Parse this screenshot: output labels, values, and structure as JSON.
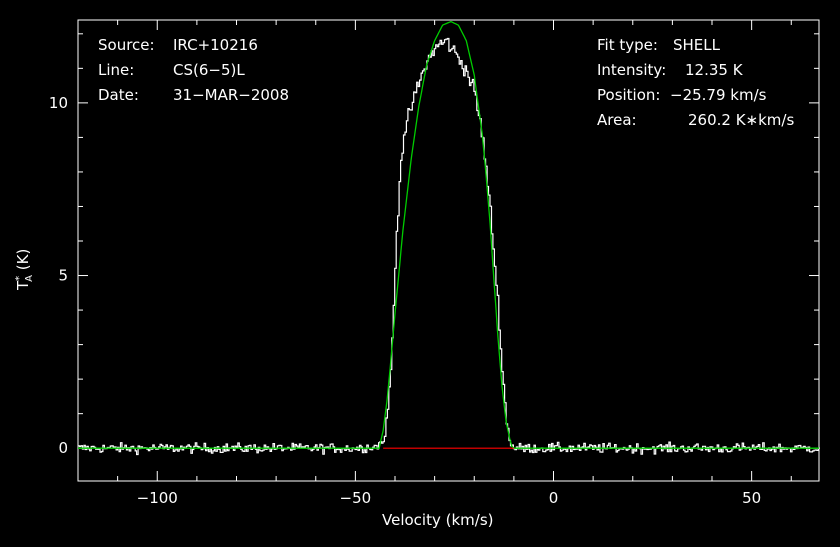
{
  "header_left": {
    "source_label": "Source:",
    "source_value": "IRC+10216",
    "line_label": "Line:",
    "line_value": "CS(6−5)L",
    "date_label": "Date:",
    "date_value": "31−MAR−2008"
  },
  "header_right": {
    "fit_label": "Fit type:",
    "fit_value": "SHELL",
    "intensity_label": "Intensity:",
    "intensity_value": "12.35 K",
    "position_label": "Position:",
    "position_value": "−25.79 km/s",
    "area_label": "Area:",
    "area_value": "260.2 K∗km/s"
  },
  "chart_data": {
    "type": "line",
    "xlabel": "Velocity (km/s)",
    "ylabel": "T",
    "ylabel_sub": "A",
    "ylabel_sup": "*",
    "ylabel_unit": "(K)",
    "xlim": [
      -120,
      67
    ],
    "ylim": [
      -0.95,
      12.4
    ],
    "xticks": [
      -100,
      -50,
      0,
      50
    ],
    "xtick_labels": [
      "−100",
      "−50",
      "0",
      "50"
    ],
    "yticks": [
      0,
      5,
      10
    ],
    "ytick_labels": [
      "0",
      "5",
      "10"
    ],
    "series": [
      {
        "color": "#ffffff",
        "style": "histogram",
        "x": [
          -120,
          -100,
          -80,
          -60,
          -50,
          -45,
          -43,
          -42,
          -41,
          -40,
          -39,
          -38,
          -36,
          -34,
          -32,
          -30,
          -28,
          -27,
          -26,
          -24,
          -22,
          -20,
          -18,
          -16,
          -14,
          -13,
          -12,
          -11,
          -10,
          0,
          20,
          40,
          67
        ],
        "y": [
          0,
          0,
          0,
          0,
          0,
          0.05,
          0.2,
          1.0,
          2.6,
          5.5,
          7.8,
          9.0,
          9.9,
          10.6,
          11.2,
          11.6,
          11.75,
          11.8,
          11.6,
          11.3,
          10.9,
          10.3,
          9.0,
          6.8,
          4.0,
          2.2,
          0.8,
          0.15,
          0,
          0,
          0,
          0,
          0
        ],
        "noise_rms": 0.07
      },
      {
        "color": "#00cc00",
        "style": "line",
        "x": [
          -120,
          -50,
          -44,
          -43,
          -42,
          -41,
          -40,
          -39,
          -38,
          -36,
          -34,
          -32,
          -30,
          -28,
          -26,
          -25.8,
          -24,
          -22,
          -20,
          -18,
          -17,
          -16,
          -15,
          -14,
          -13,
          -12,
          -11,
          -10.5,
          -10,
          0,
          67
        ],
        "y": [
          0,
          0,
          0.0,
          0.5,
          1.4,
          2.6,
          3.9,
          5.1,
          6.3,
          8.3,
          9.9,
          11.1,
          11.8,
          12.25,
          12.35,
          12.35,
          12.25,
          11.8,
          10.8,
          9.1,
          7.9,
          6.5,
          4.8,
          3.2,
          1.8,
          0.8,
          0.25,
          0.05,
          0,
          0,
          0
        ]
      },
      {
        "color": "#ff0000",
        "style": "line",
        "x": [
          -43,
          -10
        ],
        "y": [
          0,
          0
        ]
      }
    ],
    "grid": false,
    "legend": "none"
  }
}
